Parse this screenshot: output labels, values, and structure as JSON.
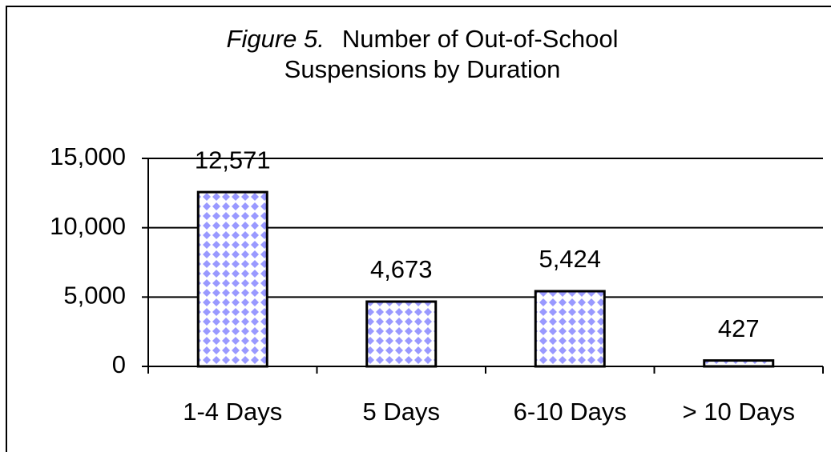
{
  "chart_data": {
    "type": "bar",
    "figure_label": "Figure 5.",
    "title": "Number of Out-of-School Suspensions by Duration",
    "categories": [
      "1-4 Days",
      "5 Days",
      "6-10 Days",
      "> 10 Days"
    ],
    "values": [
      12571,
      4673,
      5424,
      427
    ],
    "value_labels": [
      "12,571",
      "4,673",
      "5,424",
      "427"
    ],
    "color": "#9999ff",
    "ylim": [
      0,
      15000
    ],
    "yticks": [
      0,
      {
        "value": 5000,
        "label": "5,000"
      },
      {
        "value": 10000,
        "label": "10,000"
      },
      {
        "value": 15000,
        "label": "15,000"
      }
    ],
    "grid": true
  }
}
